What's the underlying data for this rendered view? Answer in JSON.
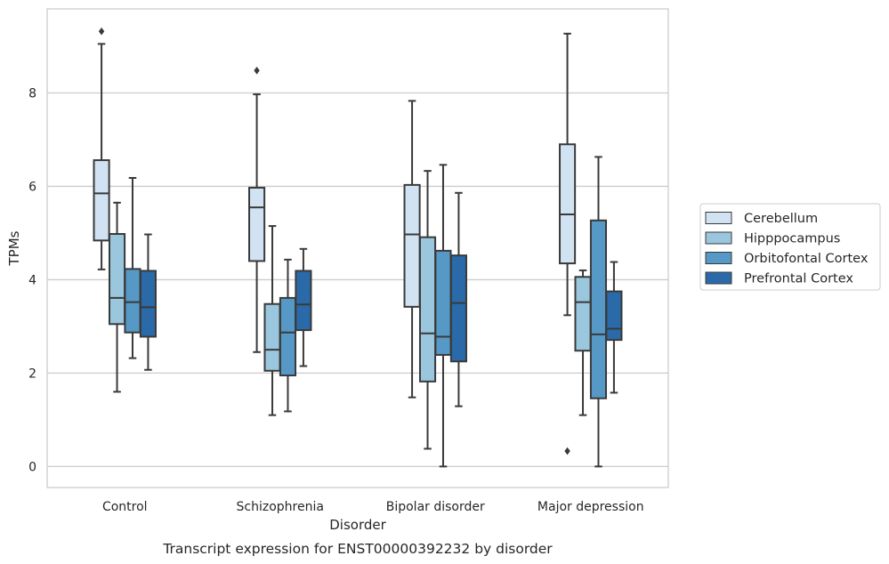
{
  "chart_data": {
    "type": "box",
    "title": "",
    "caption": "Transcript expression for ENST00000392232 by disorder",
    "xlabel": "Disorder",
    "ylabel": "TPMs",
    "ylim": [
      -0.45,
      9.8
    ],
    "yticks": [
      0,
      2,
      4,
      6,
      8
    ],
    "grid": "horizontal",
    "legend_position": "right",
    "categories": [
      "Control",
      "Schizophrenia",
      "Bipolar disorder",
      "Major depression"
    ],
    "series": [
      {
        "name": "Cerebellum",
        "color": "#d1e2f2",
        "boxes": [
          {
            "whislo": 4.22,
            "q1": 4.84,
            "med": 5.85,
            "q3": 6.56,
            "whishi": 9.05,
            "fliers": [
              9.32
            ]
          },
          {
            "whislo": 2.45,
            "q1": 4.4,
            "med": 5.55,
            "q3": 5.97,
            "whishi": 7.97,
            "fliers": [
              8.48
            ]
          },
          {
            "whislo": 1.48,
            "q1": 3.42,
            "med": 4.97,
            "q3": 6.03,
            "whishi": 7.83,
            "fliers": []
          },
          {
            "whislo": 3.24,
            "q1": 4.35,
            "med": 5.4,
            "q3": 6.9,
            "whishi": 9.27,
            "fliers": [
              0.33
            ]
          }
        ]
      },
      {
        "name": "Hipppocampus",
        "color": "#9ac7de",
        "boxes": [
          {
            "whislo": 1.6,
            "q1": 3.05,
            "med": 3.61,
            "q3": 4.98,
            "whishi": 5.65,
            "fliers": []
          },
          {
            "whislo": 1.1,
            "q1": 2.05,
            "med": 2.5,
            "q3": 3.48,
            "whishi": 5.15,
            "fliers": []
          },
          {
            "whislo": 0.38,
            "q1": 1.82,
            "med": 2.85,
            "q3": 4.91,
            "whishi": 6.33,
            "fliers": []
          },
          {
            "whislo": 1.1,
            "q1": 2.48,
            "med": 3.52,
            "q3": 4.06,
            "whishi": 4.2,
            "fliers": []
          }
        ]
      },
      {
        "name": "Orbitofontal Cortex",
        "color": "#5699c6",
        "boxes": [
          {
            "whislo": 2.32,
            "q1": 2.87,
            "med": 3.52,
            "q3": 4.23,
            "whishi": 6.18,
            "fliers": []
          },
          {
            "whislo": 1.18,
            "q1": 1.95,
            "med": 2.87,
            "q3": 3.61,
            "whishi": 4.43,
            "fliers": []
          },
          {
            "whislo": 0.0,
            "q1": 2.39,
            "med": 2.78,
            "q3": 4.62,
            "whishi": 6.46,
            "fliers": []
          },
          {
            "whislo": 0.0,
            "q1": 1.46,
            "med": 2.83,
            "q3": 5.27,
            "whishi": 6.63,
            "fliers": []
          }
        ]
      },
      {
        "name": "Prefrontal Cortex",
        "color": "#2a6aa8",
        "boxes": [
          {
            "whislo": 2.07,
            "q1": 2.78,
            "med": 3.41,
            "q3": 4.19,
            "whishi": 4.97,
            "fliers": []
          },
          {
            "whislo": 2.15,
            "q1": 2.92,
            "med": 3.47,
            "q3": 4.19,
            "whishi": 4.66,
            "fliers": []
          },
          {
            "whislo": 1.29,
            "q1": 2.25,
            "med": 3.5,
            "q3": 4.52,
            "whishi": 5.86,
            "fliers": []
          },
          {
            "whislo": 1.58,
            "q1": 2.71,
            "med": 2.95,
            "q3": 3.75,
            "whishi": 4.38,
            "fliers": []
          }
        ]
      }
    ]
  }
}
